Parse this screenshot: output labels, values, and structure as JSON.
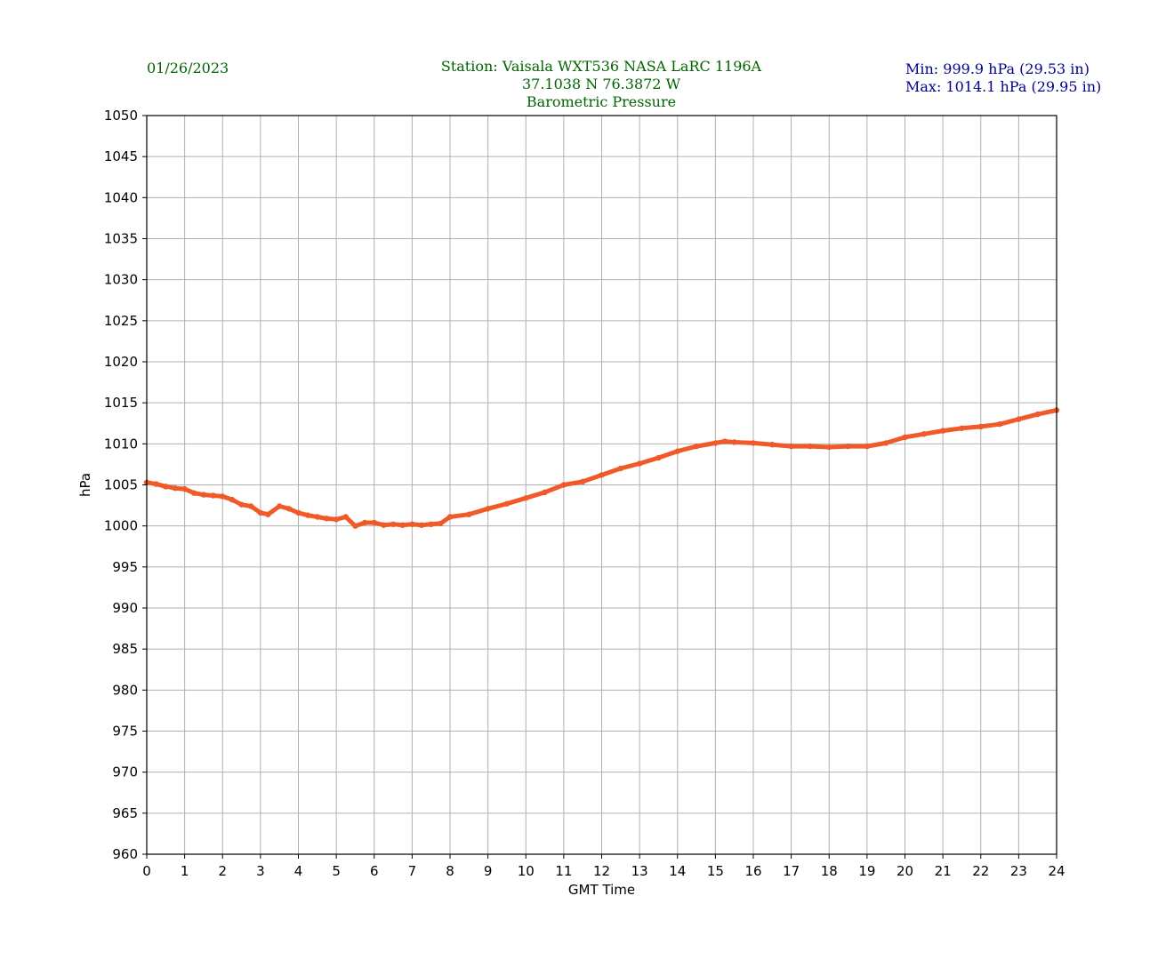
{
  "header": {
    "date": "01/26/2023",
    "station": "Station:  Vaisala WXT536  NASA LaRC 1196A",
    "coords": "37.1038 N 76.3872 W",
    "title": "Barometric Pressure",
    "min": "Min: 999.9 hPa (29.53 in)",
    "max": "Max: 1014.1 hPa (29.95 in)"
  },
  "colors": {
    "header_green": "#006400",
    "header_blue": "#00008b",
    "series": "#f05a28",
    "grid": "#b0b0b0"
  },
  "chart_data": {
    "type": "line",
    "title": "Barometric Pressure",
    "xlabel": "GMT Time",
    "ylabel": "hPa",
    "xlim": [
      0,
      24
    ],
    "ylim": [
      960,
      1050
    ],
    "xticks": [
      0,
      1,
      2,
      3,
      4,
      5,
      6,
      7,
      8,
      9,
      10,
      11,
      12,
      13,
      14,
      15,
      16,
      17,
      18,
      19,
      20,
      21,
      22,
      23,
      24
    ],
    "yticks": [
      960,
      965,
      970,
      975,
      980,
      985,
      990,
      995,
      1000,
      1005,
      1010,
      1015,
      1020,
      1025,
      1030,
      1035,
      1040,
      1045,
      1050
    ],
    "grid": true,
    "series": [
      {
        "name": "",
        "x": [
          0,
          0.25,
          0.5,
          0.75,
          1,
          1.25,
          1.5,
          1.75,
          2,
          2.25,
          2.5,
          2.75,
          3,
          3.2,
          3.5,
          3.75,
          4,
          4.25,
          4.5,
          4.75,
          5,
          5.25,
          5.5,
          5.75,
          6,
          6.25,
          6.5,
          6.75,
          7,
          7.25,
          7.5,
          7.75,
          8,
          8.5,
          9,
          9.5,
          10,
          10.5,
          11,
          11.5,
          12,
          12.5,
          13,
          13.5,
          14,
          14.5,
          15,
          15.25,
          15.5,
          16,
          16.5,
          17,
          17.5,
          18,
          18.5,
          19,
          19.5,
          20,
          20.5,
          21,
          21.5,
          22,
          22.5,
          23,
          23.5,
          24
        ],
        "values": [
          1005.3,
          1005.1,
          1004.8,
          1004.6,
          1004.5,
          1004.0,
          1003.8,
          1003.7,
          1003.6,
          1003.2,
          1002.6,
          1002.4,
          1001.6,
          1001.4,
          1002.4,
          1002.1,
          1001.6,
          1001.3,
          1001.1,
          1000.9,
          1000.8,
          1001.1,
          1000.0,
          1000.4,
          1000.4,
          1000.1,
          1000.2,
          1000.1,
          1000.2,
          1000.1,
          1000.2,
          1000.3,
          1001.1,
          1001.4,
          1002.1,
          1002.7,
          1003.4,
          1004.1,
          1005.0,
          1005.4,
          1006.2,
          1007.0,
          1007.6,
          1008.3,
          1009.1,
          1009.7,
          1010.1,
          1010.3,
          1010.2,
          1010.1,
          1009.9,
          1009.7,
          1009.7,
          1009.6,
          1009.7,
          1009.7,
          1010.1,
          1010.8,
          1011.2,
          1011.6,
          1011.9,
          1012.1,
          1012.4,
          1013.0,
          1013.6,
          1014.1
        ]
      }
    ]
  }
}
